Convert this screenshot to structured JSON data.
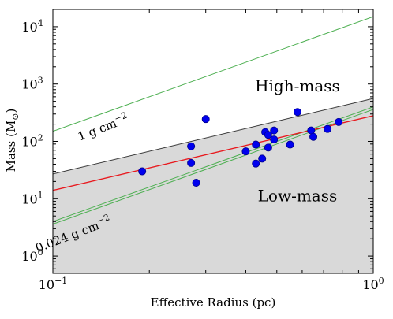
{
  "chart_data": {
    "type": "scatter",
    "title": "",
    "xlabel": "Effective Radius (pc)",
    "ylabel": "Mass (M",
    "ylabel_sub": "⊙",
    "ylabel_close": ")",
    "xscale": "log",
    "yscale": "log",
    "xlim": [
      0.1,
      1.0
    ],
    "ylim": [
      0.5,
      20000
    ],
    "x_ticks": [
      {
        "value": 0.1,
        "base": "10",
        "exp": "−1"
      },
      {
        "value": 1.0,
        "base": "10",
        "exp": "0"
      }
    ],
    "y_ticks": [
      {
        "value": 1,
        "base": "10",
        "exp": "0"
      },
      {
        "value": 10,
        "base": "10",
        "exp": "1"
      },
      {
        "value": 100,
        "base": "10",
        "exp": "2"
      },
      {
        "value": 1000,
        "base": "10",
        "exp": "3"
      },
      {
        "value": 10000,
        "base": "10",
        "exp": "4"
      }
    ],
    "grid": false,
    "regions": [
      {
        "name": "Low-mass",
        "boundary_line": [
          {
            "x": 0.1,
            "y": 27
          },
          {
            "x": 1.0,
            "y": 560
          }
        ],
        "fill": "#d9d9d9"
      }
    ],
    "lines": [
      {
        "color": "#3a3a3a",
        "points": [
          {
            "x": 0.1,
            "y": 27
          },
          {
            "x": 1.0,
            "y": 560
          }
        ]
      },
      {
        "color": "#4caf50",
        "points": [
          {
            "x": 0.1,
            "y": 150
          },
          {
            "x": 1.0,
            "y": 15000
          }
        ]
      },
      {
        "color": "#4caf50",
        "points": [
          {
            "x": 0.1,
            "y": 4.0
          },
          {
            "x": 1.0,
            "y": 400
          }
        ]
      },
      {
        "color": "#4caf50",
        "points": [
          {
            "x": 0.1,
            "y": 3.6
          },
          {
            "x": 1.0,
            "y": 360
          }
        ]
      },
      {
        "color": "#e8191e",
        "points": [
          {
            "x": 0.1,
            "y": 14
          },
          {
            "x": 1.0,
            "y": 280
          }
        ]
      }
    ],
    "points": [
      {
        "x": 0.19,
        "y": 30
      },
      {
        "x": 0.27,
        "y": 82
      },
      {
        "x": 0.27,
        "y": 42
      },
      {
        "x": 0.28,
        "y": 19
      },
      {
        "x": 0.3,
        "y": 245
      },
      {
        "x": 0.4,
        "y": 67
      },
      {
        "x": 0.43,
        "y": 88
      },
      {
        "x": 0.43,
        "y": 41
      },
      {
        "x": 0.45,
        "y": 50
      },
      {
        "x": 0.46,
        "y": 145
      },
      {
        "x": 0.47,
        "y": 130
      },
      {
        "x": 0.47,
        "y": 78
      },
      {
        "x": 0.49,
        "y": 108
      },
      {
        "x": 0.49,
        "y": 155
      },
      {
        "x": 0.55,
        "y": 88
      },
      {
        "x": 0.58,
        "y": 325
      },
      {
        "x": 0.64,
        "y": 155
      },
      {
        "x": 0.65,
        "y": 120
      },
      {
        "x": 0.72,
        "y": 165
      },
      {
        "x": 0.78,
        "y": 218
      }
    ],
    "marker_color": "#0000ee",
    "marker_edge": "#00008b",
    "annotations": [
      {
        "text": "High-mass",
        "at": {
          "x": 0.58,
          "y": 750
        },
        "style": "big",
        "rotate": 0
      },
      {
        "text": "Low-mass",
        "at": {
          "x": 0.58,
          "y": 9
        },
        "style": "big",
        "rotate": 0
      },
      {
        "text": "1 g cm",
        "sup": "−2",
        "at": {
          "x": 0.145,
          "y": 150
        },
        "style": "small",
        "rotate": -21
      },
      {
        "text": "0.024 g cm",
        "sup": "−2",
        "at": {
          "x": 0.117,
          "y": 2.05
        },
        "style": "small",
        "rotate": -21
      }
    ]
  }
}
